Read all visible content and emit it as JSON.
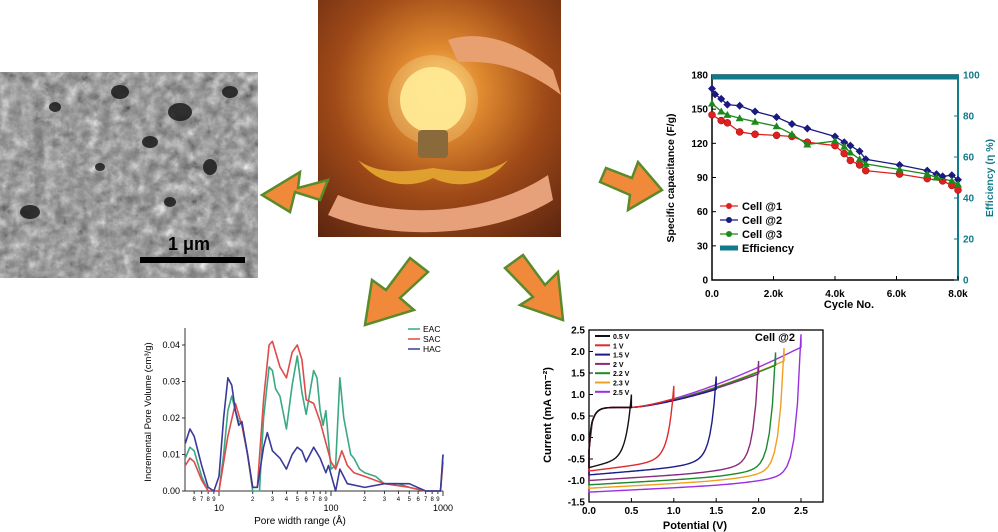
{
  "sem_image": {
    "scale_label": "1 μm"
  },
  "photo": {
    "subject": "light-bulb-in-hands"
  },
  "colors": {
    "arrow_fill": "#f08a3a",
    "arrow_stroke": "#5a8a2a"
  },
  "chart_data": [
    {
      "type": "line",
      "xlabel": "Cycle No.",
      "ylabel": "Specific capacitance (F/g)",
      "y2label": "Efficiency (η %)",
      "xlim": [
        0,
        8000
      ],
      "ylim": [
        0,
        180
      ],
      "y2lim": [
        0,
        100
      ],
      "xticks": [
        "0.0",
        "2.0k",
        "4.0k",
        "6.0k",
        "8.0k"
      ],
      "yticks": [
        "0",
        "30",
        "60",
        "90",
        "120",
        "150",
        "180"
      ],
      "y2ticks": [
        "0",
        "20",
        "40",
        "60",
        "80",
        "100"
      ],
      "legend_position": "bottom-left",
      "series": [
        {
          "name": "Cell @1",
          "color": "#e02020",
          "marker": "circle",
          "x": [
            0,
            300,
            500,
            900,
            1400,
            2100,
            2600,
            3100,
            4000,
            4300,
            4500,
            4800,
            5000,
            6100,
            7000,
            7500,
            7800,
            8000
          ],
          "y": [
            145,
            140,
            138,
            130,
            128,
            127,
            126,
            121,
            118,
            111,
            105,
            101,
            96,
            93,
            89,
            87,
            83,
            79
          ]
        },
        {
          "name": "Cell @2",
          "color": "#1a1a80",
          "marker": "diamond",
          "x": [
            0,
            100,
            300,
            500,
            900,
            1400,
            2100,
            2600,
            3100,
            4000,
            4300,
            4500,
            4800,
            5000,
            6100,
            7000,
            7300,
            7500,
            7800,
            8000
          ],
          "y": [
            168,
            163,
            159,
            154,
            153,
            148,
            143,
            137,
            133,
            126,
            121,
            118,
            113,
            106,
            101,
            96,
            93,
            91,
            92,
            88
          ]
        },
        {
          "name": "Cell @3",
          "color": "#1a8a1a",
          "marker": "triangle",
          "x": [
            0,
            300,
            500,
            900,
            1400,
            2100,
            2600,
            3100,
            4000,
            4300,
            4500,
            4800,
            5000,
            6100,
            7000,
            7300,
            7800,
            8000
          ],
          "y": [
            155,
            148,
            145,
            142,
            139,
            135,
            128,
            119,
            122,
            117,
            112,
            106,
            102,
            97,
            93,
            90,
            87,
            84
          ]
        },
        {
          "name": "Efficiency",
          "color": "#117a8b",
          "axis": "right",
          "x": [
            0,
            8000
          ],
          "y": [
            99,
            99
          ]
        }
      ]
    },
    {
      "type": "line",
      "xlabel": "Pore width range (Å)",
      "ylabel": "Incremental Pore Volume (cm³/g)",
      "xscale": "log",
      "xlim": [
        5,
        1000
      ],
      "ylim": [
        0,
        0.044
      ],
      "xticks": [
        "6",
        "7",
        "8",
        "9",
        "10",
        "2",
        "3",
        "4",
        "5",
        "6",
        "7",
        "8",
        "9",
        "100",
        "2",
        "3",
        "4",
        "5",
        "6",
        "7",
        "8",
        "9",
        "1000"
      ],
      "yticks": [
        "0.00",
        "0.01",
        "0.02",
        "0.03",
        "0.04"
      ],
      "legend_position": "top-right",
      "series": [
        {
          "name": "EAC",
          "color": "#3aa882",
          "x": [
            5,
            5.5,
            6,
            7,
            8,
            10,
            11,
            12,
            13,
            14,
            15,
            16,
            18,
            20,
            23,
            25,
            28,
            30,
            32,
            35,
            40,
            45,
            50,
            55,
            60,
            70,
            75,
            80,
            85,
            90,
            100,
            110,
            120,
            130,
            150,
            160,
            180,
            200,
            250,
            300,
            400,
            500,
            700,
            950,
            1000
          ],
          "y": [
            0.009,
            0.012,
            0.011,
            0.004,
            0,
            0,
            0.01,
            0.022,
            0.026,
            0.022,
            0.019,
            0.019,
            0.01,
            0,
            0,
            0.02,
            0.034,
            0.033,
            0.028,
            0.026,
            0.017,
            0.029,
            0.037,
            0.027,
            0.021,
            0.033,
            0.031,
            0.022,
            0.018,
            0.022,
            0.006,
            0.007,
            0.031,
            0.02,
            0.01,
            0.009,
            0.006,
            0.005,
            0.004,
            0.002,
            0.002,
            0.001,
            0,
            0,
            0.01
          ]
        },
        {
          "name": "SAC",
          "color": "#e04a4a",
          "x": [
            5,
            5.5,
            6,
            7,
            8,
            10,
            12,
            14,
            16,
            18,
            20,
            22,
            25,
            28,
            30,
            35,
            40,
            45,
            50,
            55,
            60,
            70,
            80,
            100,
            110,
            125,
            140,
            160,
            200,
            300,
            500,
            700,
            950,
            1000
          ],
          "y": [
            0.007,
            0.009,
            0.008,
            0.003,
            0,
            0,
            0.015,
            0.024,
            0.018,
            0.01,
            0.001,
            0.001,
            0.025,
            0.04,
            0.041,
            0.034,
            0.031,
            0.038,
            0.04,
            0.036,
            0.025,
            0.024,
            0.019,
            0.008,
            0.006,
            0.011,
            0.007,
            0.005,
            0.004,
            0.002,
            0.001,
            0,
            0,
            0.008
          ]
        },
        {
          "name": "HAC",
          "color": "#3a3a9a",
          "x": [
            5,
            5.5,
            6,
            7,
            8,
            9,
            10,
            11,
            12,
            13,
            14,
            15,
            16,
            18,
            20,
            22,
            25,
            27,
            30,
            35,
            40,
            45,
            50,
            55,
            60,
            70,
            80,
            90,
            95,
            110,
            120,
            140,
            200,
            300,
            400,
            500,
            700,
            950,
            1000
          ],
          "y": [
            0.013,
            0.017,
            0.015,
            0.007,
            0.001,
            0,
            0.004,
            0.02,
            0.031,
            0.029,
            0.022,
            0.018,
            0.019,
            0.01,
            0.001,
            0.001,
            0.012,
            0.016,
            0.011,
            0.009,
            0.006,
            0.01,
            0.012,
            0.011,
            0.008,
            0.012,
            0.009,
            0.005,
            0.007,
            0,
            0.006,
            0.002,
            0.001,
            0.002,
            0.002,
            0.002,
            0,
            0,
            0.01
          ]
        }
      ]
    },
    {
      "type": "line",
      "title": "Cell @2",
      "xlabel": "Potential (V)",
      "ylabel": "Current (mA cm⁻²)",
      "xlim": [
        0,
        2.75
      ],
      "ylim": [
        -1.5,
        2.5
      ],
      "xticks": [
        "0.0",
        "0.5",
        "1.0",
        "1.5",
        "2.0",
        "2.5"
      ],
      "yticks": [
        "-1.5",
        "-1.0",
        "-0.5",
        "0.0",
        "0.5",
        "1.0",
        "1.5",
        "2.0",
        "2.5"
      ],
      "legend_position": "top-left",
      "series": [
        {
          "name": "0.5 V",
          "color": "#111111",
          "vmax": 0.5,
          "i_top": 0.7,
          "i_bottom": -0.7
        },
        {
          "name": "1 V",
          "color": "#e02a2a",
          "vmax": 1.0,
          "i_top": 0.9,
          "i_bottom": -0.78
        },
        {
          "name": "1.5 V",
          "color": "#1a1a8a",
          "vmax": 1.5,
          "i_top": 1.12,
          "i_bottom": -0.87
        },
        {
          "name": "2 V",
          "color": "#8a2a7a",
          "vmax": 2.0,
          "i_top": 1.48,
          "i_bottom": -1.0
        },
        {
          "name": "2.2 V",
          "color": "#1a8a2a",
          "vmax": 2.2,
          "i_top": 1.68,
          "i_bottom": -1.1
        },
        {
          "name": "2.3 V",
          "color": "#f0a020",
          "vmax": 2.3,
          "i_top": 1.78,
          "i_bottom": -1.18
        },
        {
          "name": "2.5 V",
          "color": "#9a30e0",
          "vmax": 2.5,
          "i_top": 2.1,
          "i_bottom": -1.27
        }
      ]
    }
  ]
}
